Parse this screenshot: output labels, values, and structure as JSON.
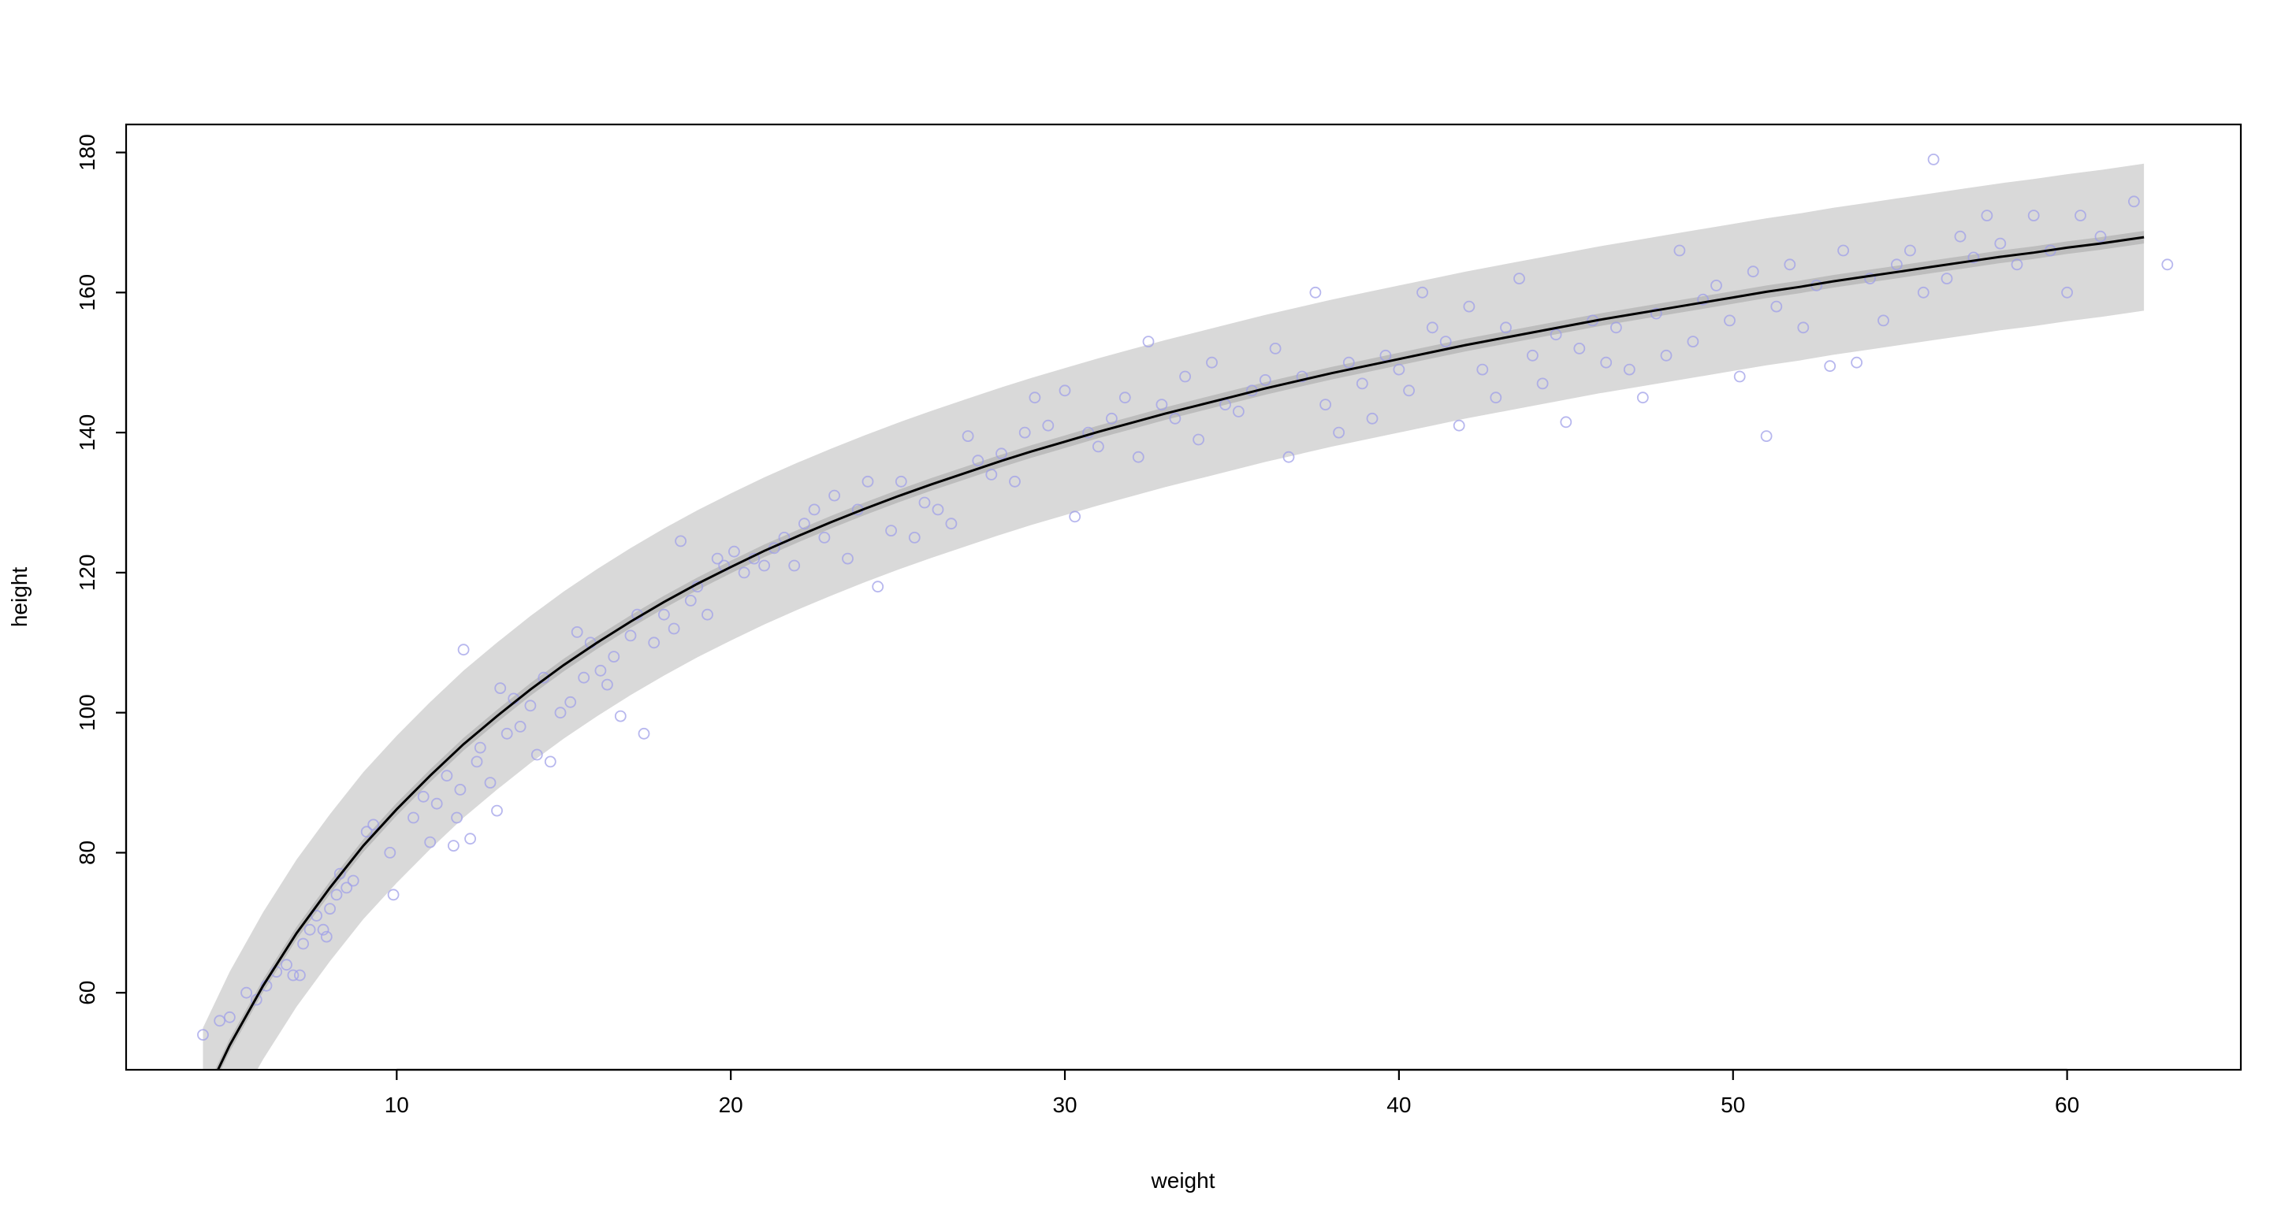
{
  "chart_data": {
    "type": "scatter",
    "title": "",
    "xlabel": "weight",
    "ylabel": "height",
    "xlim": [
      1.9,
      65.2
    ],
    "ylim": [
      49,
      184
    ],
    "x_ticks": [
      10,
      20,
      30,
      40,
      50,
      60
    ],
    "y_ticks": [
      60,
      80,
      100,
      120,
      140,
      160,
      180
    ],
    "grid": false,
    "legend": "none",
    "colors": {
      "points": "#9f9fe8",
      "prediction_interval": "#d9d9d9",
      "mean_interval": "#bdbdbd",
      "mean_line": "#000000"
    },
    "series": [
      {
        "kind": "points",
        "points": [
          [
            4.2,
            54
          ],
          [
            4.7,
            56
          ],
          [
            5.0,
            56.5
          ],
          [
            5.5,
            60
          ],
          [
            5.8,
            59
          ],
          [
            6.1,
            61
          ],
          [
            6.4,
            63
          ],
          [
            6.7,
            64
          ],
          [
            6.9,
            62.5
          ],
          [
            7.1,
            62.5
          ],
          [
            7.2,
            67
          ],
          [
            7.4,
            69
          ],
          [
            7.6,
            71
          ],
          [
            7.8,
            69
          ],
          [
            7.9,
            68
          ],
          [
            8.0,
            72
          ],
          [
            8.2,
            74
          ],
          [
            8.3,
            77
          ],
          [
            8.5,
            75
          ],
          [
            8.7,
            76
          ],
          [
            9.1,
            83
          ],
          [
            9.3,
            84
          ],
          [
            9.8,
            80
          ],
          [
            9.9,
            74
          ],
          [
            10.5,
            85
          ],
          [
            10.8,
            88
          ],
          [
            11.0,
            81.5
          ],
          [
            11.2,
            87
          ],
          [
            11.5,
            91
          ],
          [
            11.7,
            81
          ],
          [
            11.8,
            85
          ],
          [
            11.9,
            89
          ],
          [
            12.0,
            109
          ],
          [
            12.2,
            82
          ],
          [
            12.4,
            93
          ],
          [
            12.5,
            95
          ],
          [
            12.8,
            90
          ],
          [
            13.0,
            86
          ],
          [
            13.1,
            103.5
          ],
          [
            13.3,
            97
          ],
          [
            13.5,
            102
          ],
          [
            13.7,
            98
          ],
          [
            14.0,
            101
          ],
          [
            14.2,
            94
          ],
          [
            14.4,
            105
          ],
          [
            14.6,
            93
          ],
          [
            14.9,
            100
          ],
          [
            15.2,
            101.5
          ],
          [
            15.4,
            111.5
          ],
          [
            15.6,
            105
          ],
          [
            15.8,
            110
          ],
          [
            16.1,
            106
          ],
          [
            16.3,
            104
          ],
          [
            16.5,
            108
          ],
          [
            16.7,
            99.5
          ],
          [
            17.0,
            111
          ],
          [
            17.2,
            114
          ],
          [
            17.4,
            97
          ],
          [
            17.7,
            110
          ],
          [
            18.0,
            114
          ],
          [
            18.3,
            112
          ],
          [
            18.5,
            124.5
          ],
          [
            18.8,
            116
          ],
          [
            19.0,
            118
          ],
          [
            19.3,
            114
          ],
          [
            19.6,
            122
          ],
          [
            19.8,
            121
          ],
          [
            20.1,
            123
          ],
          [
            20.4,
            120
          ],
          [
            20.7,
            122
          ],
          [
            21.0,
            121
          ],
          [
            21.3,
            123.5
          ],
          [
            21.6,
            125
          ],
          [
            21.9,
            121
          ],
          [
            22.2,
            127
          ],
          [
            22.5,
            129
          ],
          [
            22.8,
            125
          ],
          [
            23.1,
            131
          ],
          [
            23.5,
            122
          ],
          [
            23.8,
            129
          ],
          [
            24.1,
            133
          ],
          [
            24.4,
            118
          ],
          [
            24.8,
            126
          ],
          [
            25.1,
            133
          ],
          [
            25.5,
            125
          ],
          [
            25.8,
            130
          ],
          [
            26.2,
            129
          ],
          [
            26.6,
            127
          ],
          [
            27.1,
            139.5
          ],
          [
            27.4,
            136
          ],
          [
            27.8,
            134
          ],
          [
            28.1,
            137
          ],
          [
            28.5,
            133
          ],
          [
            28.8,
            140
          ],
          [
            29.1,
            145
          ],
          [
            29.5,
            141
          ],
          [
            30.0,
            146
          ],
          [
            30.3,
            128
          ],
          [
            30.7,
            140
          ],
          [
            31.0,
            138
          ],
          [
            31.4,
            142
          ],
          [
            31.8,
            145
          ],
          [
            32.2,
            136.5
          ],
          [
            32.5,
            153
          ],
          [
            32.9,
            144
          ],
          [
            33.3,
            142
          ],
          [
            33.6,
            148
          ],
          [
            34.0,
            139
          ],
          [
            34.4,
            150
          ],
          [
            34.8,
            144
          ],
          [
            35.2,
            143
          ],
          [
            35.6,
            146
          ],
          [
            36.0,
            147.5
          ],
          [
            36.3,
            152
          ],
          [
            36.7,
            136.5
          ],
          [
            37.1,
            148
          ],
          [
            37.5,
            160
          ],
          [
            37.8,
            144
          ],
          [
            38.2,
            140
          ],
          [
            38.5,
            150
          ],
          [
            38.9,
            147
          ],
          [
            39.2,
            142
          ],
          [
            39.6,
            151
          ],
          [
            40.0,
            149
          ],
          [
            40.3,
            146
          ],
          [
            40.7,
            160
          ],
          [
            41.0,
            155
          ],
          [
            41.4,
            153
          ],
          [
            41.8,
            141
          ],
          [
            42.1,
            158
          ],
          [
            42.5,
            149
          ],
          [
            42.9,
            145
          ],
          [
            43.2,
            155
          ],
          [
            43.6,
            162
          ],
          [
            44.0,
            151
          ],
          [
            44.3,
            147
          ],
          [
            44.7,
            154
          ],
          [
            45.0,
            141.5
          ],
          [
            45.4,
            152
          ],
          [
            45.8,
            156
          ],
          [
            46.2,
            150
          ],
          [
            46.5,
            155
          ],
          [
            46.9,
            149
          ],
          [
            47.3,
            145
          ],
          [
            47.7,
            157
          ],
          [
            48.0,
            151
          ],
          [
            48.4,
            166
          ],
          [
            48.8,
            153
          ],
          [
            49.1,
            159
          ],
          [
            49.5,
            161
          ],
          [
            49.9,
            156
          ],
          [
            50.2,
            148
          ],
          [
            50.6,
            163
          ],
          [
            51.0,
            139.5
          ],
          [
            51.3,
            158
          ],
          [
            51.7,
            164
          ],
          [
            52.1,
            155
          ],
          [
            52.5,
            161
          ],
          [
            52.9,
            149.5
          ],
          [
            53.3,
            166
          ],
          [
            53.7,
            150
          ],
          [
            54.1,
            162
          ],
          [
            54.5,
            156
          ],
          [
            54.9,
            164
          ],
          [
            55.3,
            166
          ],
          [
            55.7,
            160
          ],
          [
            56.0,
            179
          ],
          [
            56.4,
            162
          ],
          [
            56.8,
            168
          ],
          [
            57.2,
            165
          ],
          [
            57.6,
            171
          ],
          [
            58.0,
            167
          ],
          [
            58.5,
            164
          ],
          [
            59.0,
            171
          ],
          [
            59.5,
            166
          ],
          [
            60.0,
            160
          ],
          [
            60.4,
            171
          ],
          [
            61.0,
            168
          ],
          [
            62.0,
            173
          ],
          [
            63.0,
            164
          ]
        ]
      },
      {
        "kind": "mean-curve",
        "points": [
          [
            4.2,
            44.5
          ],
          [
            5,
            52.5
          ],
          [
            6,
            61
          ],
          [
            7,
            68.5
          ],
          [
            8,
            75
          ],
          [
            9,
            81
          ],
          [
            10,
            86.2
          ],
          [
            11,
            91
          ],
          [
            12,
            95.5
          ],
          [
            13,
            99.5
          ],
          [
            14,
            103.3
          ],
          [
            15,
            106.8
          ],
          [
            16,
            110
          ],
          [
            17,
            113
          ],
          [
            18,
            115.8
          ],
          [
            19,
            118.4
          ],
          [
            20,
            120.8
          ],
          [
            21,
            123.1
          ],
          [
            22,
            125.2
          ],
          [
            23,
            127.2
          ],
          [
            24,
            129.1
          ],
          [
            25,
            130.9
          ],
          [
            26,
            132.6
          ],
          [
            27,
            134.2
          ],
          [
            28,
            135.8
          ],
          [
            29,
            137.3
          ],
          [
            30,
            138.7
          ],
          [
            31,
            140.1
          ],
          [
            32,
            141.4
          ],
          [
            33,
            142.7
          ],
          [
            34,
            143.9
          ],
          [
            35,
            145.1
          ],
          [
            36,
            146.3
          ],
          [
            37,
            147.4
          ],
          [
            38,
            148.5
          ],
          [
            39,
            149.5
          ],
          [
            40,
            150.5
          ],
          [
            41,
            151.5
          ],
          [
            42,
            152.5
          ],
          [
            43,
            153.4
          ],
          [
            44,
            154.3
          ],
          [
            45,
            155.2
          ],
          [
            46,
            156.1
          ],
          [
            47,
            156.9
          ],
          [
            48,
            157.7
          ],
          [
            49,
            158.5
          ],
          [
            50,
            159.3
          ],
          [
            51,
            160.1
          ],
          [
            52,
            160.8
          ],
          [
            53,
            161.6
          ],
          [
            54,
            162.3
          ],
          [
            55,
            163
          ],
          [
            56,
            163.7
          ],
          [
            57,
            164.4
          ],
          [
            58,
            165.1
          ],
          [
            59,
            165.7
          ],
          [
            60,
            166.4
          ],
          [
            61,
            167
          ],
          [
            62.3,
            167.9
          ]
        ]
      },
      {
        "kind": "prediction-interval",
        "half_width": 10.5
      },
      {
        "kind": "mean-interval",
        "half_width": 0.9
      }
    ]
  }
}
